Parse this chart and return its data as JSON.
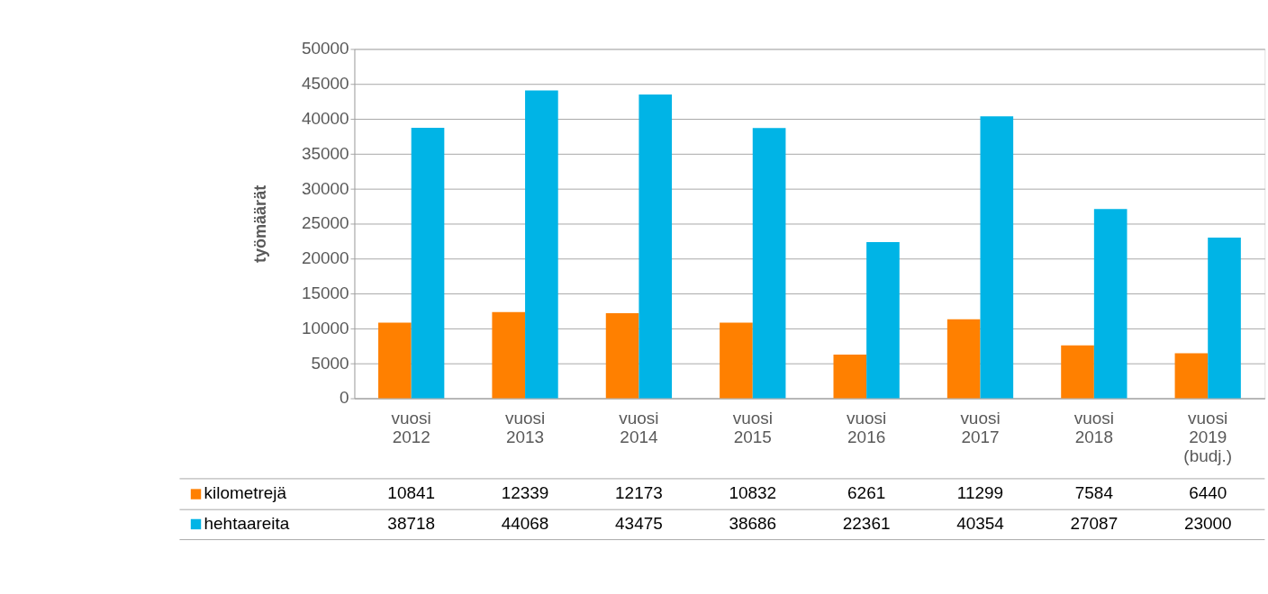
{
  "chart_data": {
    "type": "bar",
    "ylabel": "työmäärät",
    "categories": [
      "vuosi 2012",
      "vuosi 2013",
      "vuosi 2014",
      "vuosi 2015",
      "vuosi 2016",
      "vuosi 2017",
      "vuosi 2018",
      "vuosi 2019 (budj.)"
    ],
    "series": [
      {
        "name": "kilometrejä",
        "color": "#ff8000",
        "values": [
          10841,
          12339,
          12173,
          10832,
          6261,
          11299,
          7584,
          6440
        ]
      },
      {
        "name": "hehtaareita",
        "color": "#00b4e6",
        "values": [
          38718,
          44068,
          43475,
          38686,
          22361,
          40354,
          27087,
          23000
        ]
      }
    ],
    "ylim": [
      0,
      50000
    ],
    "yticks": [
      0,
      5000,
      10000,
      15000,
      20000,
      25000,
      30000,
      35000,
      40000,
      45000,
      50000
    ],
    "grid": "y",
    "data_labels": true,
    "legend": "bottom left"
  }
}
